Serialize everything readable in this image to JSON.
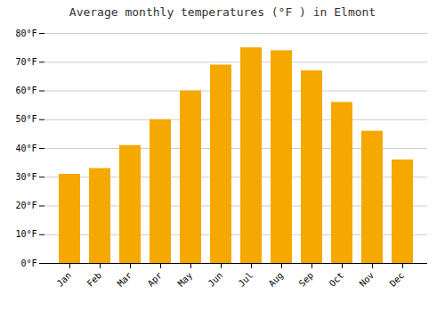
{
  "chart_data": {
    "type": "bar",
    "title": "Average monthly temperatures (°F ) in Elmont",
    "categories": [
      "Jan",
      "Feb",
      "Mar",
      "Apr",
      "May",
      "Jun",
      "Jul",
      "Aug",
      "Sep",
      "Oct",
      "Nov",
      "Dec"
    ],
    "values": [
      31,
      33,
      41,
      50,
      60,
      69,
      75,
      74,
      67,
      56,
      46,
      36
    ],
    "color": "#F5A800",
    "ylim": [
      0,
      80
    ],
    "yticks": [
      {
        "value": 0,
        "label": "0°F"
      },
      {
        "value": 10,
        "label": "10°F"
      },
      {
        "value": 20,
        "label": "20°F"
      },
      {
        "value": 30,
        "label": "30°F"
      },
      {
        "value": 40,
        "label": "40°F"
      },
      {
        "value": 50,
        "label": "50°F"
      },
      {
        "value": 60,
        "label": "60°F"
      },
      {
        "value": 70,
        "label": "70°F"
      },
      {
        "value": 80,
        "label": "80°F"
      }
    ],
    "grid": true
  }
}
